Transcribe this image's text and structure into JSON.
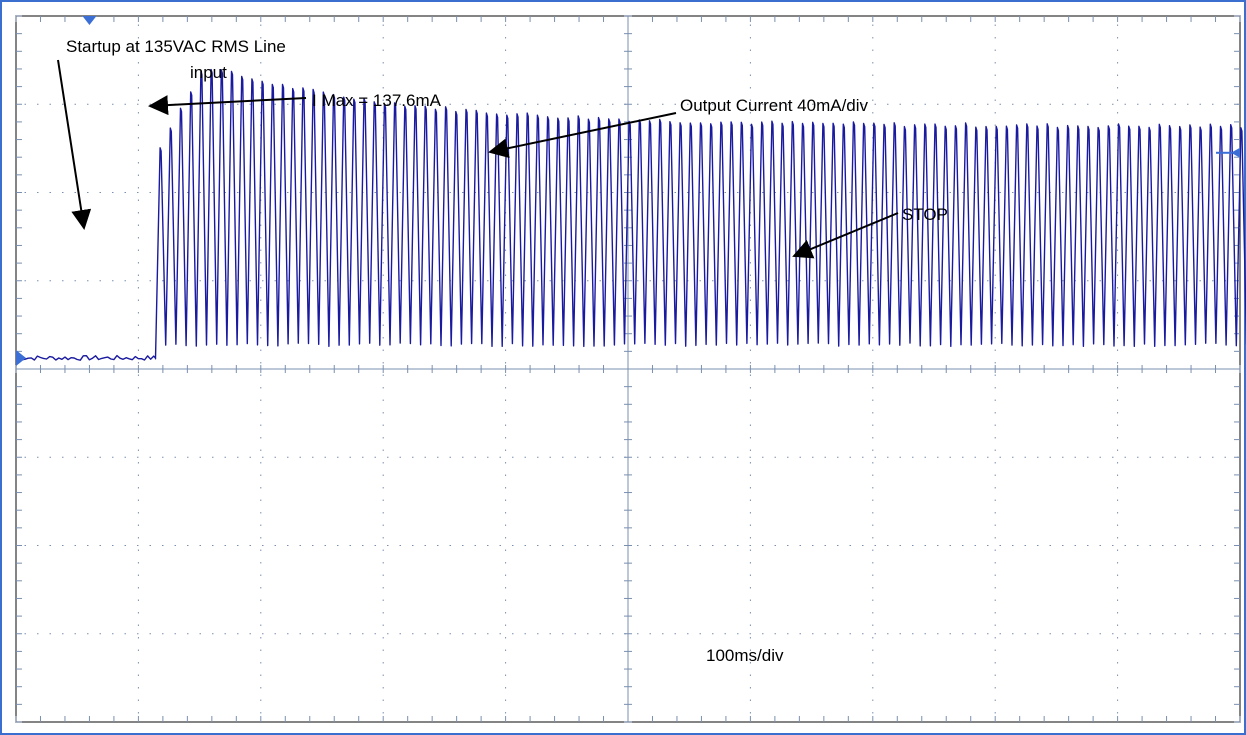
{
  "chart_data": {
    "type": "line",
    "title": "",
    "xlabel": "",
    "ylabel": "",
    "grid": true,
    "grid_divisions": {
      "x": 10,
      "y": 8
    },
    "x_scale": "100ms/div",
    "y_scale": "40mA/div",
    "xlim": [
      0,
      1000
    ],
    "ylim": [
      -160,
      160
    ],
    "series": [
      {
        "name": "Output Current",
        "color": "#1a1aa0",
        "baseline_mA": 5,
        "start_ms": 114,
        "stop_ms": 1108,
        "cycle_ms": 8.33,
        "peak_max_mA": 137.6,
        "peak_steady_mA": 110,
        "trough_mA": 11
      }
    ],
    "annotations": {
      "startup_line1": "Startup at 135VAC RMS Line",
      "startup_line2": "input",
      "imax": "I Max = 137.6mA",
      "output_current": "Output Current 40mA/div",
      "stop": "STOP",
      "timebase": "100ms/div"
    }
  },
  "colors": {
    "trace": "#1a1aa0",
    "marker": "#3b6fd6",
    "grid": "#7a8fb0",
    "frame_outer": "#3a6fd0"
  }
}
